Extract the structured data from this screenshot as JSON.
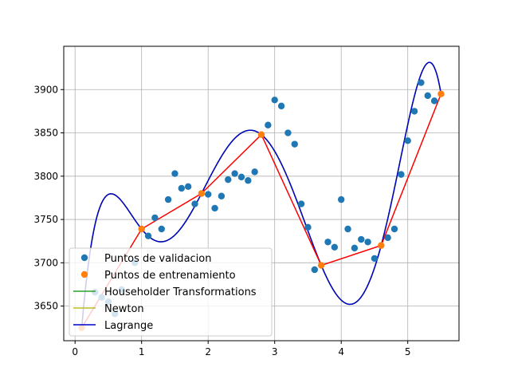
{
  "chart_data": {
    "type": "scatter",
    "title": "",
    "xlabel": "",
    "ylabel": "",
    "xlim": [
      -0.17,
      5.77
    ],
    "ylim": [
      3610,
      3950
    ],
    "xticks": [
      0,
      1,
      2,
      3,
      4,
      5
    ],
    "yticks": [
      3650,
      3700,
      3750,
      3800,
      3850,
      3900
    ],
    "grid": true,
    "legend_position": "lower-left",
    "colors": {
      "validation": "#1f77b4",
      "training": "#ff7f0e",
      "linear_interp": "#ff0000",
      "householder": "#2ca02c",
      "newton": "#bcbd22",
      "lagrange": "#0000cd"
    },
    "legend": [
      {
        "label": "Puntos de validacion",
        "kind": "marker",
        "series": "validation"
      },
      {
        "label": "Puntos de entrenamiento",
        "kind": "marker",
        "series": "training"
      },
      {
        "label": "Householder Transformations",
        "kind": "line",
        "series": "householder"
      },
      {
        "label": "Newton",
        "kind": "line",
        "series": "newton"
      },
      {
        "label": "Lagrange",
        "kind": "line",
        "series": "lagrange"
      }
    ],
    "series": [
      {
        "name": "Puntos de validacion",
        "key": "validation",
        "points": [
          [
            0.3,
            3666
          ],
          [
            0.4,
            3660
          ],
          [
            0.5,
            3655
          ],
          [
            0.6,
            3641
          ],
          [
            0.7,
            3669
          ],
          [
            0.9,
            3700
          ],
          [
            1.1,
            3731
          ],
          [
            1.2,
            3752
          ],
          [
            1.3,
            3739
          ],
          [
            1.4,
            3773
          ],
          [
            1.5,
            3803
          ],
          [
            1.6,
            3786
          ],
          [
            1.7,
            3788
          ],
          [
            1.8,
            3768
          ],
          [
            2.0,
            3779
          ],
          [
            2.1,
            3763
          ],
          [
            2.2,
            3777
          ],
          [
            2.3,
            3796
          ],
          [
            2.4,
            3803
          ],
          [
            2.5,
            3799
          ],
          [
            2.6,
            3795
          ],
          [
            2.7,
            3805
          ],
          [
            2.9,
            3859
          ],
          [
            3.0,
            3888
          ],
          [
            3.1,
            3881
          ],
          [
            3.2,
            3850
          ],
          [
            3.3,
            3837
          ],
          [
            3.4,
            3768
          ],
          [
            3.5,
            3741
          ],
          [
            3.6,
            3692
          ],
          [
            3.8,
            3724
          ],
          [
            3.9,
            3718
          ],
          [
            4.0,
            3773
          ],
          [
            4.1,
            3739
          ],
          [
            4.2,
            3717
          ],
          [
            4.3,
            3727
          ],
          [
            4.4,
            3724
          ],
          [
            4.5,
            3705
          ],
          [
            4.7,
            3729
          ],
          [
            4.8,
            3739
          ],
          [
            4.9,
            3802
          ],
          [
            5.0,
            3841
          ],
          [
            5.1,
            3875
          ],
          [
            5.2,
            3908
          ],
          [
            5.3,
            3893
          ],
          [
            5.4,
            3887
          ]
        ]
      },
      {
        "name": "Puntos de entrenamiento",
        "key": "training",
        "points": [
          [
            0.1,
            3625
          ],
          [
            1.0,
            3739
          ],
          [
            1.9,
            3780
          ],
          [
            2.8,
            3848
          ],
          [
            3.7,
            3697
          ],
          [
            4.6,
            3720
          ],
          [
            5.5,
            3895
          ]
        ]
      },
      {
        "name": "",
        "key": "linear_interp",
        "points": [
          [
            0.1,
            3625
          ],
          [
            1.0,
            3739
          ],
          [
            1.9,
            3780
          ],
          [
            2.8,
            3848
          ],
          [
            3.7,
            3697
          ],
          [
            4.6,
            3720
          ],
          [
            5.5,
            3895
          ]
        ]
      }
    ]
  }
}
